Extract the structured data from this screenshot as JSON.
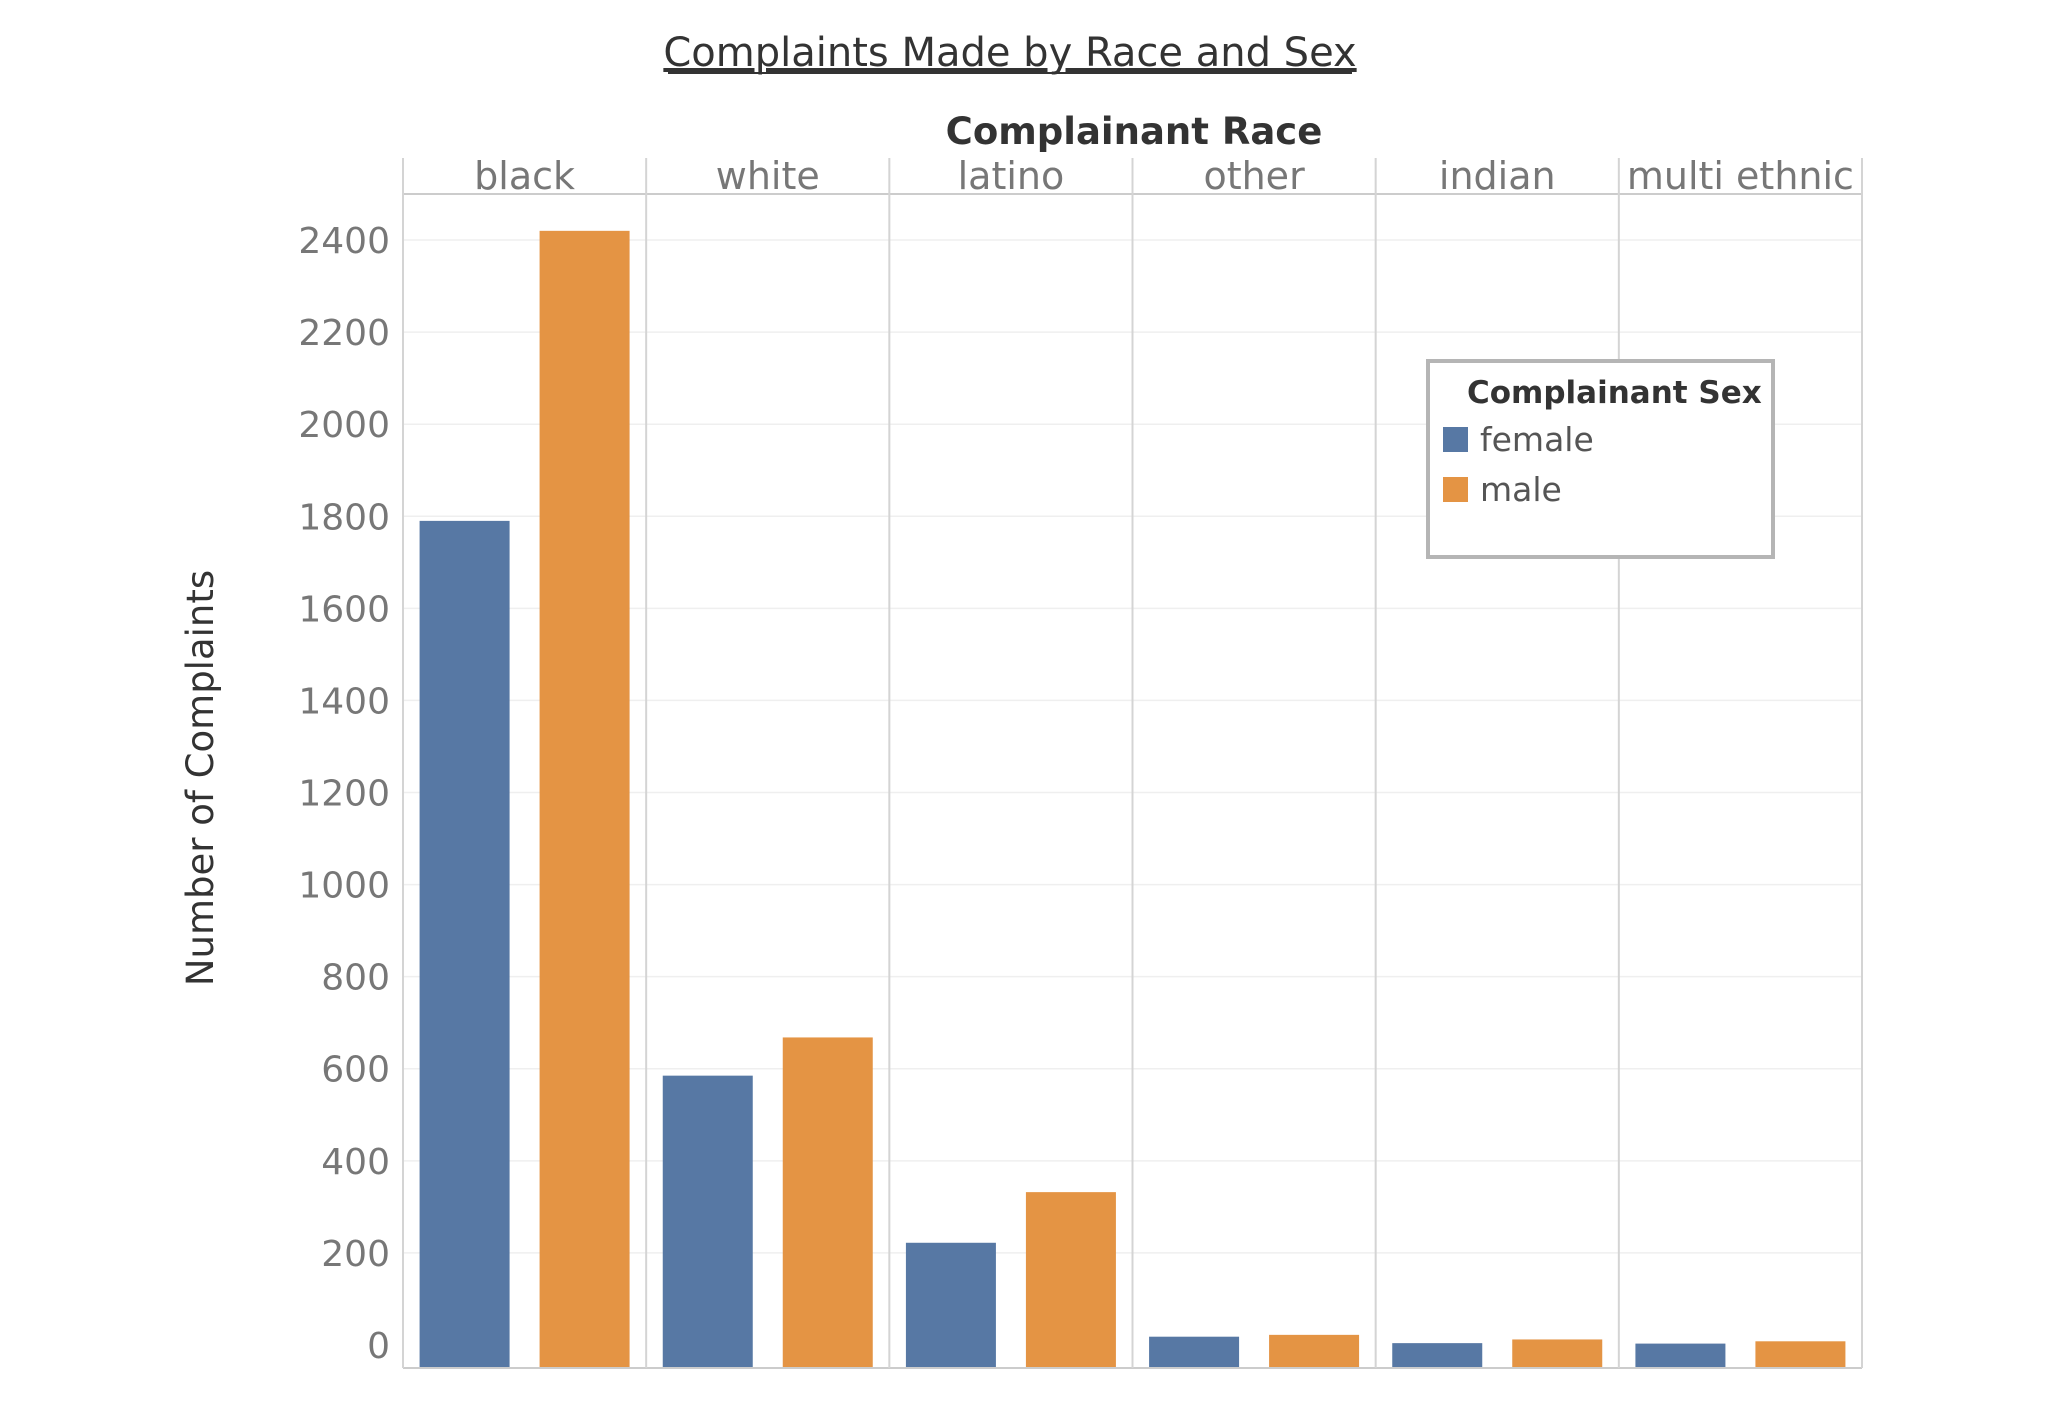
{
  "chart_data": {
    "type": "bar",
    "title": "Complaints Made by Race and Sex",
    "column_header": "Complainant Race",
    "categories": [
      "black",
      "white",
      "latino",
      "other",
      "indian",
      "multi ethnic"
    ],
    "series": [
      {
        "name": "female",
        "color": "#5778a4",
        "values": [
          1790,
          585,
          222,
          18,
          4,
          3
        ]
      },
      {
        "name": "male",
        "color": "#e49444",
        "values": [
          2420,
          668,
          332,
          22,
          12,
          8
        ]
      }
    ],
    "ylabel": "Number of Complaints",
    "ylim": [
      -50,
      2500
    ],
    "yticks": [
      0,
      200,
      400,
      600,
      800,
      1000,
      1200,
      1400,
      1600,
      1800,
      2000,
      2200,
      2400
    ],
    "grid": true,
    "legend": {
      "title": "Complainant Sex",
      "position": "top-right"
    }
  }
}
